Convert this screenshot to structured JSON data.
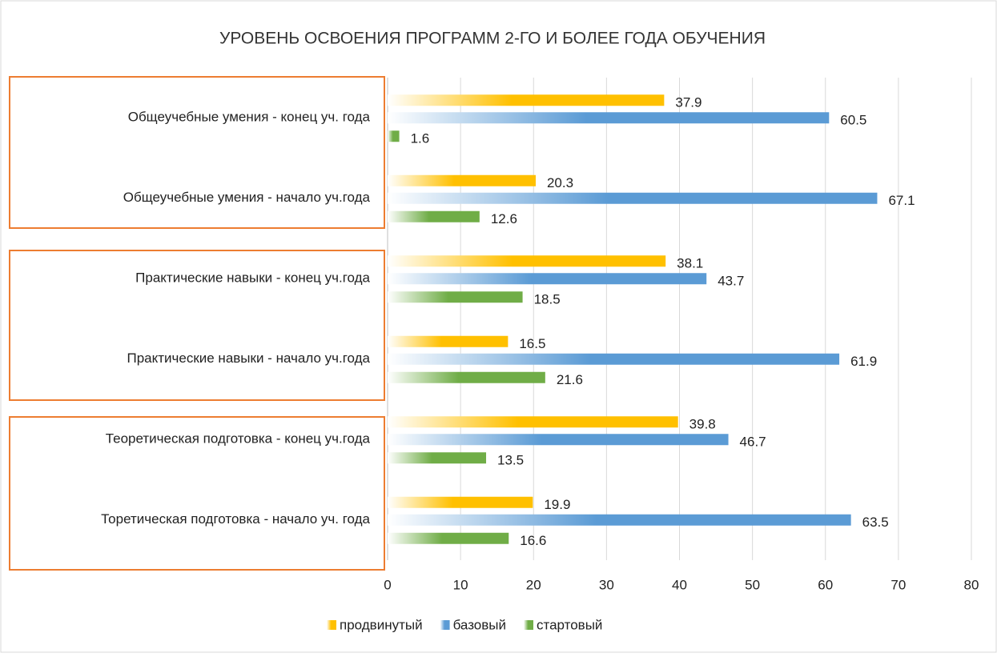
{
  "chart_data": {
    "type": "bar",
    "orientation": "horizontal",
    "title": "УРОВЕНЬ ОСВОЕНИЯ ПРОГРАММ 2-ГО И БОЛЕЕ ГОДА ОБУЧЕНИЯ",
    "categories": [
      "Общеучебные умения - конец уч. года",
      "Общеучебные умения - начало уч.года",
      "Практические навыки - конец уч.года",
      "Практические навыки - начало уч.года",
      "Теоретическая подготовка  - конец уч.года",
      "Торетическая подготовка - начало уч. года"
    ],
    "series": [
      {
        "name": "продвинутый",
        "color": "#ffc000",
        "values": [
          37.9,
          20.3,
          38.1,
          16.5,
          39.8,
          19.9
        ]
      },
      {
        "name": "базовый",
        "color": "#5b9bd5",
        "values": [
          60.5,
          67.1,
          43.7,
          61.9,
          46.7,
          63.5
        ]
      },
      {
        "name": "стартовый",
        "color": "#70ad47",
        "values": [
          1.6,
          12.6,
          18.5,
          21.6,
          13.5,
          16.6
        ]
      }
    ],
    "xlim": [
      0,
      80
    ],
    "xticks": [
      0,
      10,
      20,
      30,
      40,
      50,
      60,
      70,
      80
    ],
    "grid": true,
    "legend": "bottom"
  }
}
